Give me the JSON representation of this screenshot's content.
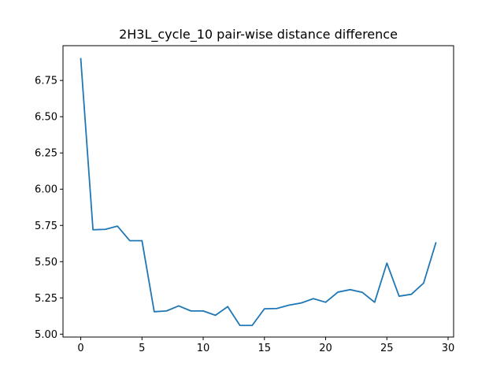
{
  "chart_data": {
    "type": "line",
    "title": "2H3L_cycle_10 pair-wise distance difference",
    "xlabel": "",
    "ylabel": "",
    "xlim": [
      -1.45,
      30.45
    ],
    "ylim": [
      4.98,
      6.99
    ],
    "xticks": [
      0,
      5,
      10,
      15,
      20,
      25,
      30
    ],
    "yticks": [
      5.0,
      5.25,
      5.5,
      5.75,
      6.0,
      6.25,
      6.5,
      6.75
    ],
    "xtick_labels": [
      "0",
      "5",
      "10",
      "15",
      "20",
      "25",
      "30"
    ],
    "ytick_labels": [
      "5.00",
      "5.25",
      "5.50",
      "5.75",
      "6.00",
      "6.25",
      "6.50",
      "6.75"
    ],
    "grid": false,
    "legend": "none",
    "series": [
      {
        "color": "#1f77b4",
        "x": [
          0,
          1,
          2,
          3,
          4,
          5,
          6,
          7,
          8,
          9,
          10,
          11,
          12,
          13,
          14,
          15,
          16,
          17,
          18,
          19,
          20,
          21,
          22,
          23,
          24,
          25,
          26,
          27,
          28,
          29
        ],
        "values": [
          6.9,
          5.72,
          5.723,
          5.745,
          5.645,
          5.645,
          5.155,
          5.16,
          5.195,
          5.16,
          5.16,
          5.13,
          5.19,
          5.06,
          5.06,
          5.175,
          5.177,
          5.2,
          5.215,
          5.245,
          5.22,
          5.29,
          5.307,
          5.288,
          5.22,
          5.49,
          5.262,
          5.275,
          5.352,
          5.63
        ]
      }
    ]
  }
}
